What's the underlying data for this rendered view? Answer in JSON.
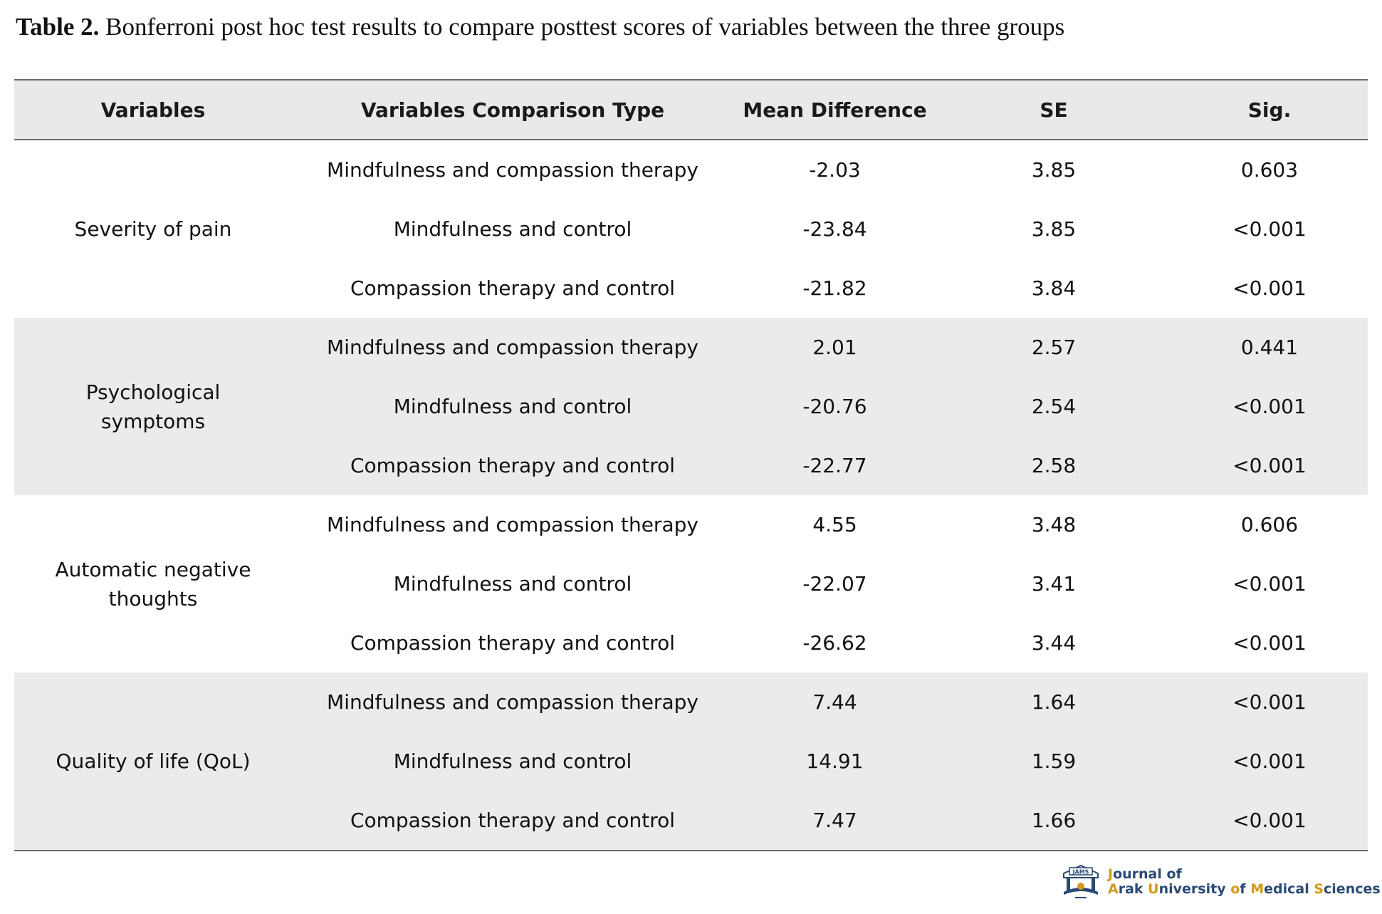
{
  "caption": {
    "label": "Table 2.",
    "text": "Bonferroni post hoc test results to compare posttest scores of variables between the three groups"
  },
  "table": {
    "headers": [
      "Variables",
      "Variables Comparison Type",
      "Mean Difference",
      "SE",
      "Sig."
    ],
    "groups": [
      {
        "variable": "Severity of pain",
        "rows": [
          {
            "comparison": "Mindfulness and compassion therapy",
            "mean_diff": "-2.03",
            "se": "3.85",
            "sig": "0.603"
          },
          {
            "comparison": "Mindfulness and control",
            "mean_diff": "-23.84",
            "se": "3.85",
            "sig": "<0.001"
          },
          {
            "comparison": "Compassion therapy and control",
            "mean_diff": "-21.82",
            "se": "3.84",
            "sig": "<0.001"
          }
        ]
      },
      {
        "variable": "Psychological symptoms",
        "rows": [
          {
            "comparison": "Mindfulness and compassion therapy",
            "mean_diff": "2.01",
            "se": "2.57",
            "sig": "0.441"
          },
          {
            "comparison": "Mindfulness and control",
            "mean_diff": "-20.76",
            "se": "2.54",
            "sig": "<0.001"
          },
          {
            "comparison": "Compassion therapy and control",
            "mean_diff": "-22.77",
            "se": "2.58",
            "sig": "<0.001"
          }
        ]
      },
      {
        "variable": "Automatic negative thoughts",
        "rows": [
          {
            "comparison": "Mindfulness and compassion therapy",
            "mean_diff": "4.55",
            "se": "3.48",
            "sig": "0.606"
          },
          {
            "comparison": "Mindfulness and control",
            "mean_diff": "-22.07",
            "se": "3.41",
            "sig": "<0.001"
          },
          {
            "comparison": "Compassion therapy and control",
            "mean_diff": "-26.62",
            "se": "3.44",
            "sig": "<0.001"
          }
        ]
      },
      {
        "variable": "Quality of life (QoL)",
        "rows": [
          {
            "comparison": "Mindfulness and compassion therapy",
            "mean_diff": "7.44",
            "se": "1.64",
            "sig": "<0.001"
          },
          {
            "comparison": "Mindfulness and control",
            "mean_diff": "14.91",
            "se": "1.59",
            "sig": "<0.001"
          },
          {
            "comparison": "Compassion therapy and control",
            "mean_diff": "7.47",
            "se": "1.66",
            "sig": "<0.001"
          }
        ]
      }
    ]
  },
  "logo": {
    "emblem_text": "JAMS",
    "line1": "Journal of",
    "line2": "Arak University of Medical Sciences"
  }
}
